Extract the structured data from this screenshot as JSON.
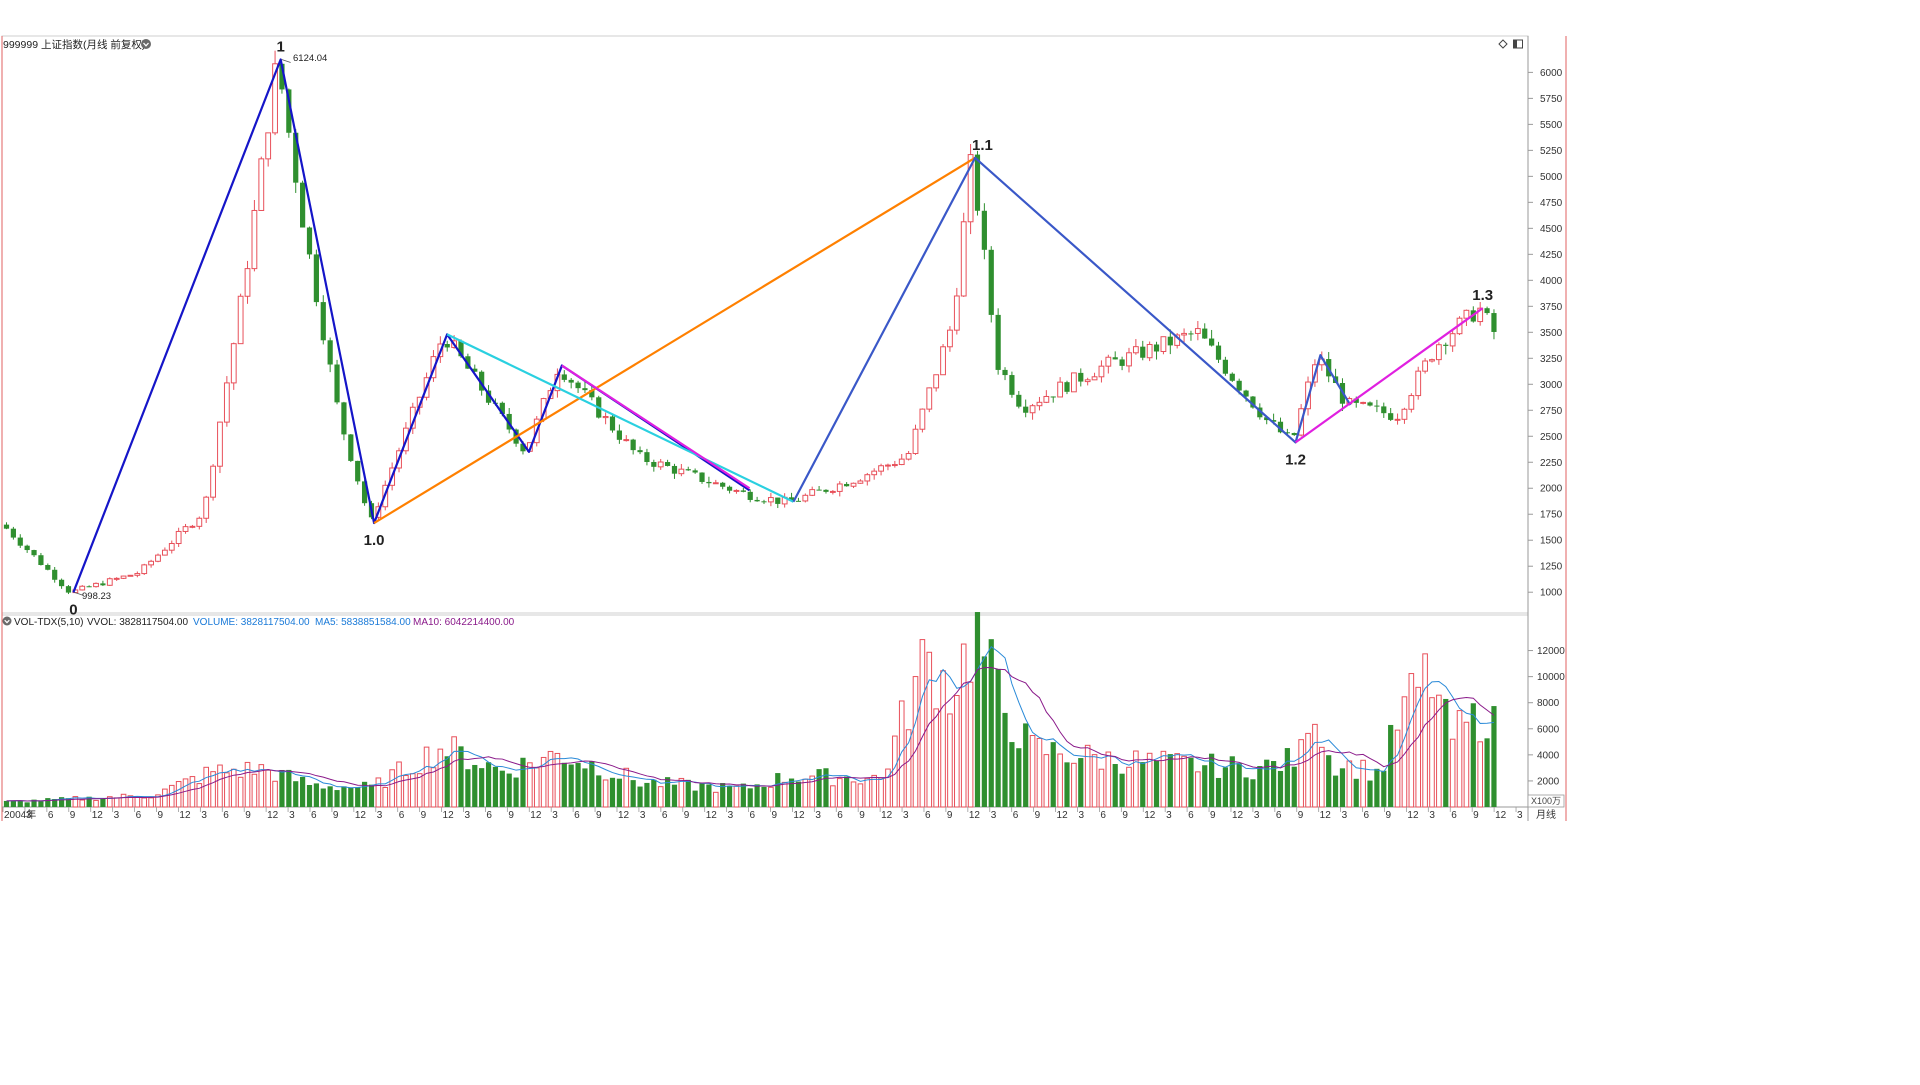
{
  "header": {
    "title": "999999 上证指数(月线 前复权)",
    "tool_icons": [
      "diamond-icon",
      "panel-toggle-icon"
    ]
  },
  "price_labels": {
    "high": "6124.04",
    "low": "998.23"
  },
  "wave_labels": [
    {
      "label": "0",
      "x": 70.5,
      "y": 998.23
    },
    {
      "label": "1",
      "x": 278.2,
      "y": 6124.04
    },
    {
      "label": "1.0",
      "x": 371.8,
      "y": 1664.93
    },
    {
      "label": "1.1",
      "x": 981.4,
      "y": 5178.19
    },
    {
      "label": "1.2",
      "x": 1295.1,
      "y": 2440.91
    },
    {
      "label": "1.3",
      "x": 1482.6,
      "y": 3731.69
    }
  ],
  "volume_legend": {
    "name": "VOL-TDX(5,10)",
    "vvol": "VVOL: 3828117504.00",
    "volume": "VOLUME: 3828117504.00",
    "ma5": "MA5: 5838851584.00",
    "ma10": "MA10: 6042214400.00"
  },
  "period_label": "月线",
  "colors": {
    "up_candle": "#e8505a",
    "down_candle": "#2f8f2f",
    "wave_main": "#1515c8",
    "wave_secondary": "#3a58c8",
    "orange_line": "#ff8000",
    "cyan_line": "#2ad0e0",
    "magenta_line": "#e020e0",
    "dark_blue_line": "#1a1aa0",
    "ma5": "#2a8ad8",
    "ma10": "#8a1a8a",
    "legend_volume_text": "#1a7ad8",
    "legend_ma10_text": "#8a1a8a"
  },
  "chart_data": [
    {
      "type": "candlestick",
      "title": "999999 上证指数(月线 前复权)",
      "period": "monthly",
      "x_ticks": [
        "2004年",
        "3",
        "6",
        "9",
        "12",
        "3",
        "6",
        "9",
        "12",
        "3",
        "6",
        "9",
        "12",
        "3",
        "6",
        "9",
        "12",
        "3",
        "6",
        "9",
        "12",
        "3",
        "6",
        "9",
        "12",
        "3",
        "6",
        "9",
        "12",
        "3",
        "6",
        "9",
        "12",
        "3",
        "6",
        "9",
        "12",
        "3",
        "6",
        "9",
        "12",
        "3",
        "6",
        "9",
        "12",
        "3",
        "6",
        "9",
        "12",
        "3",
        "6",
        "9",
        "12",
        "3",
        "6",
        "9",
        "12",
        "3",
        "6",
        "9",
        "12",
        "3",
        "6",
        "9",
        "12",
        "3",
        "6",
        "9",
        "12",
        "3"
      ],
      "y_ticks": [
        1000,
        1250,
        1500,
        1750,
        2000,
        2250,
        2500,
        2750,
        3000,
        3250,
        3500,
        3750,
        4000,
        4250,
        4500,
        4750,
        5000,
        5250,
        5500,
        5750,
        6000
      ],
      "ylim": [
        800,
        6350
      ],
      "xlim": [
        0,
        1527
      ],
      "ohlc_anchors": [
        [
          3,
          1650
        ],
        [
          70.5,
          998
        ],
        [
          140,
          1190
        ],
        [
          205,
          1780
        ],
        [
          245,
          3960
        ],
        [
          278.2,
          6124
        ],
        [
          305,
          4510
        ],
        [
          340,
          2700
        ],
        [
          371.8,
          1665
        ],
        [
          445,
          3480
        ],
        [
          527,
          2350
        ],
        [
          560,
          3180
        ],
        [
          640,
          2300
        ],
        [
          745,
          1950
        ],
        [
          790,
          1860
        ],
        [
          860,
          2100
        ],
        [
          910,
          2310
        ],
        [
          955,
          3600
        ],
        [
          974,
          5178
        ],
        [
          1000,
          3200
        ],
        [
          1025,
          2780
        ],
        [
          1100,
          3150
        ],
        [
          1200,
          3500
        ],
        [
          1270,
          2650
        ],
        [
          1295.1,
          2441
        ],
        [
          1320,
          3280
        ],
        [
          1350,
          2800
        ],
        [
          1400,
          2700
        ],
        [
          1440,
          3380
        ],
        [
          1482.6,
          3732
        ],
        [
          1500,
          3460
        ]
      ],
      "wave_lines": [
        {
          "color": "#1515c8",
          "points": [
            [
              70.5,
              998
            ],
            [
              278.2,
              6124
            ],
            [
              371.8,
              1665
            ],
            [
              445,
              3480
            ],
            [
              527,
              2350
            ],
            [
              560,
              3180
            ],
            [
              748,
              1980
            ]
          ]
        },
        {
          "color": "#ff8000",
          "points": [
            [
              371.8,
              1665
            ],
            [
              974,
              5178
            ]
          ]
        },
        {
          "color": "#2ad0e0",
          "points": [
            [
              445,
              3480
            ],
            [
              792,
              1870
            ]
          ]
        },
        {
          "color": "#e020e0",
          "points": [
            [
              560,
              3180
            ],
            [
              748,
              2000
            ]
          ]
        },
        {
          "color": "#3a58c8",
          "points": [
            [
              792,
              1870
            ],
            [
              974,
              5178
            ],
            [
              1295.1,
              2441
            ],
            [
              1320,
              3280
            ],
            [
              1350,
              2800
            ]
          ]
        },
        {
          "color": "#e020e0",
          "points": [
            [
              1295.1,
              2441
            ],
            [
              1482.6,
              3732
            ]
          ]
        }
      ]
    },
    {
      "type": "bar",
      "title": "VOL-TDX(5,10)",
      "unit_label": "X100万",
      "y_ticks": [
        2000,
        4000,
        6000,
        8000,
        10000,
        12000
      ],
      "ylim": [
        0,
        13500
      ],
      "vol_anchors": [
        [
          3,
          400
        ],
        [
          150,
          900
        ],
        [
          210,
          2700
        ],
        [
          260,
          2900
        ],
        [
          310,
          1700
        ],
        [
          370,
          1500
        ],
        [
          440,
          4600
        ],
        [
          500,
          2800
        ],
        [
          560,
          4100
        ],
        [
          640,
          1900
        ],
        [
          740,
          1400
        ],
        [
          790,
          2400
        ],
        [
          880,
          2200
        ],
        [
          925,
          11500
        ],
        [
          950,
          9000
        ],
        [
          975,
          13400
        ],
        [
          1000,
          8000
        ],
        [
          1030,
          4500
        ],
        [
          1100,
          3700
        ],
        [
          1200,
          3200
        ],
        [
          1260,
          3000
        ],
        [
          1300,
          3800
        ],
        [
          1310,
          8800
        ],
        [
          1330,
          3500
        ],
        [
          1380,
          2600
        ],
        [
          1400,
          7000
        ],
        [
          1430,
          10300
        ],
        [
          1450,
          5300
        ],
        [
          1490,
          7500
        ],
        [
          1500,
          4000
        ]
      ],
      "series": [
        {
          "name": "MA5",
          "color": "#2a8ad8"
        },
        {
          "name": "MA10",
          "color": "#8a1a8a"
        }
      ]
    }
  ]
}
